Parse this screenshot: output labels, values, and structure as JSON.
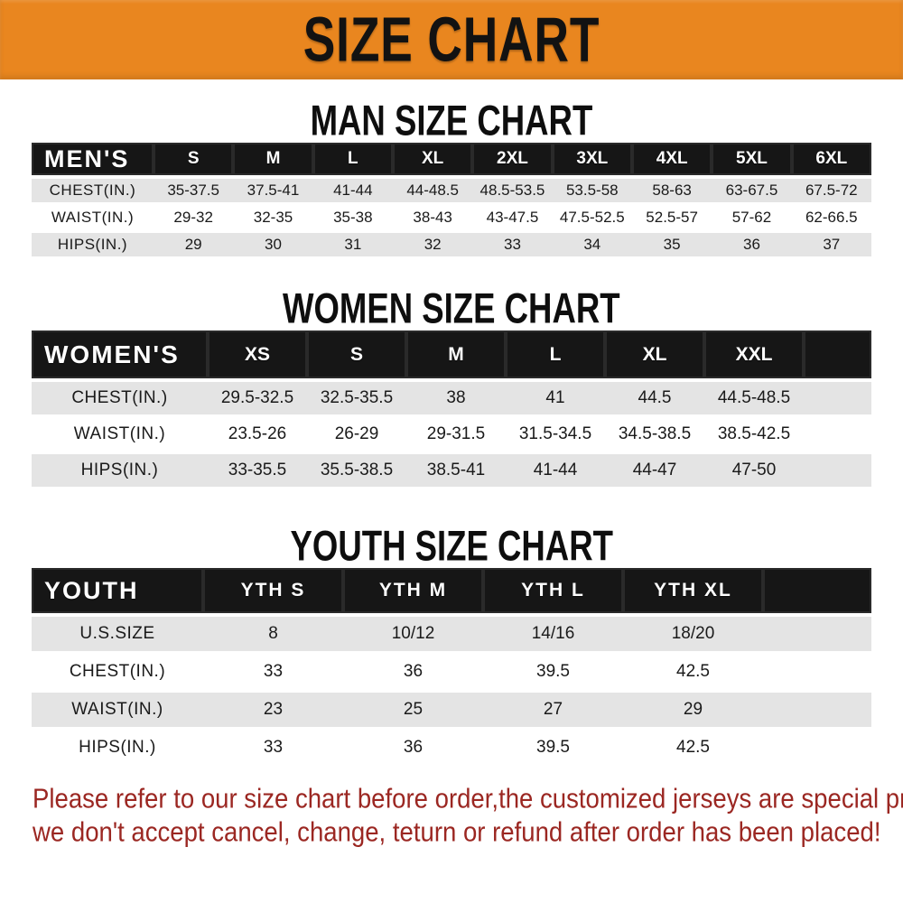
{
  "colors": {
    "banner-bg": "#E9861F",
    "header-bar-bg": "#161616",
    "header-bar-text": "#FFFFFF",
    "stripe-gray": "#E4E4E4",
    "footer-red": "#9B2722",
    "title-black": "#0E0E0E"
  },
  "banner": {
    "title": "SIZE CHART"
  },
  "man": {
    "section_title": "MAN SIZE CHART",
    "table": {
      "corner": "MEN'S",
      "sizes": [
        "S",
        "M",
        "L",
        "XL",
        "2XL",
        "3XL",
        "4XL",
        "5XL",
        "6XL"
      ],
      "rows": [
        {
          "label": "CHEST(IN.)",
          "values": [
            "35-37.5",
            "37.5-41",
            "41-44",
            "44-48.5",
            "48.5-53.5",
            "53.5-58",
            "58-63",
            "63-67.5",
            "67.5-72"
          ]
        },
        {
          "label": "WAIST(IN.)",
          "values": [
            "29-32",
            "32-35",
            "35-38",
            "38-43",
            "43-47.5",
            "47.5-52.5",
            "52.5-57",
            "57-62",
            "62-66.5"
          ]
        },
        {
          "label": "HIPS(IN.)",
          "values": [
            "29",
            "30",
            "31",
            "32",
            "33",
            "34",
            "35",
            "36",
            "37"
          ]
        }
      ]
    }
  },
  "women": {
    "section_title": "WOMEN SIZE CHART",
    "table": {
      "corner": "WOMEN'S",
      "sizes": [
        "XS",
        "S",
        "M",
        "L",
        "XL",
        "XXL"
      ],
      "rows": [
        {
          "label": "CHEST(IN.)",
          "values": [
            "29.5-32.5",
            "32.5-35.5",
            "38",
            "41",
            "44.5",
            "44.5-48.5"
          ]
        },
        {
          "label": "WAIST(IN.)",
          "values": [
            "23.5-26",
            "26-29",
            "29-31.5",
            "31.5-34.5",
            "34.5-38.5",
            "38.5-42.5"
          ]
        },
        {
          "label": "HIPS(IN.)",
          "values": [
            "33-35.5",
            "35.5-38.5",
            "38.5-41",
            "41-44",
            "44-47",
            "47-50"
          ]
        }
      ]
    }
  },
  "youth": {
    "section_title": "YOUTH SIZE CHART",
    "table": {
      "corner": "YOUTH",
      "sizes": [
        "YTH S",
        "YTH M",
        "YTH L",
        "YTH XL"
      ],
      "rows": [
        {
          "label": "U.S.SIZE",
          "values": [
            "8",
            "10/12",
            "14/16",
            "18/20"
          ]
        },
        {
          "label": "CHEST(IN.)",
          "values": [
            "33",
            "36",
            "39.5",
            "42.5"
          ]
        },
        {
          "label": "WAIST(IN.)",
          "values": [
            "23",
            "25",
            "27",
            "29"
          ]
        },
        {
          "label": "HIPS(IN.)",
          "values": [
            "33",
            "36",
            "39.5",
            "42.5"
          ]
        }
      ]
    }
  },
  "footer": {
    "lines": [
      "Please refer to our size chart before order,the customized jerseys are special products,",
      "we don't accept cancel, change, teturn or refund after order has been placed!"
    ]
  }
}
